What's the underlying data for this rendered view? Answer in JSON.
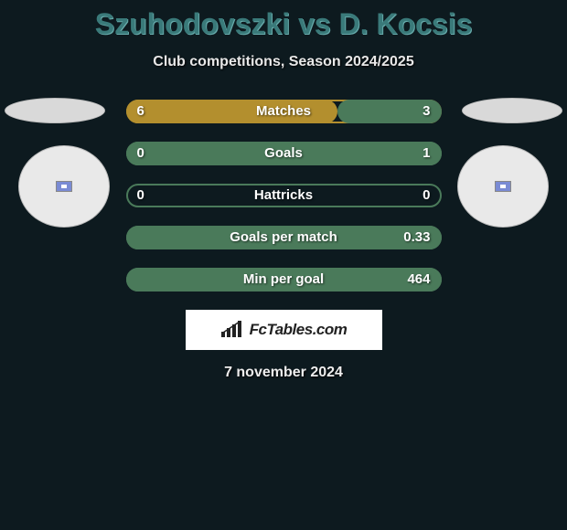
{
  "colors": {
    "background": "#0d1a1f",
    "title": "#3a7a7a",
    "text": "#e8e8e8",
    "bar_left_fill": "#b38f2e",
    "bar_right_fill": "#4a7a5a",
    "bar_border_left": "#b38f2e",
    "bar_border_right": "#4a7a5a"
  },
  "title": "Szuhodovszki vs D. Kocsis",
  "subtitle": "Club competitions, Season 2024/2025",
  "rows": [
    {
      "label": "Matches",
      "left": "6",
      "right": "3",
      "leftPct": 67,
      "rightPct": 33,
      "dominant": "left"
    },
    {
      "label": "Goals",
      "left": "0",
      "right": "1",
      "leftPct": 0,
      "rightPct": 100,
      "dominant": "right"
    },
    {
      "label": "Hattricks",
      "left": "0",
      "right": "0",
      "leftPct": 0,
      "rightPct": 0,
      "dominant": "right"
    },
    {
      "label": "Goals per match",
      "left": "",
      "right": "0.33",
      "leftPct": 0,
      "rightPct": 100,
      "dominant": "right"
    },
    {
      "label": "Min per goal",
      "left": "",
      "right": "464",
      "leftPct": 0,
      "rightPct": 100,
      "dominant": "right"
    }
  ],
  "logo_text": "FcTables.com",
  "date": "7 november 2024"
}
